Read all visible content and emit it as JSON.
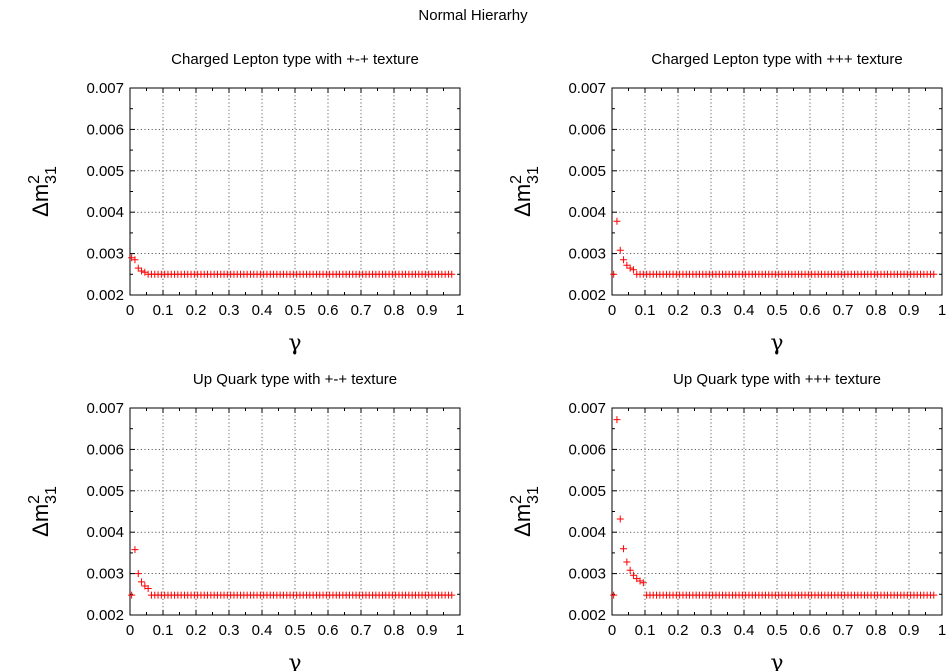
{
  "figure_title": "Normal Hierarhy",
  "chart_data": [
    {
      "type": "scatter",
      "title": "Charged Lepton type with +-+ texture",
      "xlabel": "γ",
      "ylabel": {
        "base": "Δm",
        "sup": "2",
        "sub": "31"
      },
      "xlim": [
        0,
        1
      ],
      "ylim": [
        0.002,
        0.007
      ],
      "xticks": [
        "0",
        "0.1",
        "0.2",
        "0.3",
        "0.4",
        "0.5",
        "0.6",
        "0.7",
        "0.8",
        "0.9",
        "1"
      ],
      "yticks": [
        "0.002",
        "0.003",
        "0.004",
        "0.005",
        "0.006",
        "0.007"
      ],
      "grid": true,
      "marker": "+",
      "color": "#ff0000",
      "series": [
        {
          "points": [
            [
              0.005,
              0.0029
            ],
            [
              0.015,
              0.00285
            ],
            [
              0.025,
              0.00265
            ],
            [
              0.035,
              0.00258
            ],
            [
              0.045,
              0.00255
            ]
          ],
          "tail_start": 0.055,
          "tail_step": 0.01,
          "tail_end": 0.975,
          "asymptote": 0.0025,
          "tail_k": 4e-06
        }
      ]
    },
    {
      "type": "scatter",
      "title": "Charged Lepton type with +++ texture",
      "xlabel": "γ",
      "ylabel": {
        "base": "Δm",
        "sup": "2",
        "sub": "31"
      },
      "xlim": [
        0,
        1
      ],
      "ylim": [
        0.002,
        0.007
      ],
      "xticks": [
        "0",
        "0.1",
        "0.2",
        "0.3",
        "0.4",
        "0.5",
        "0.6",
        "0.7",
        "0.8",
        "0.9",
        "1"
      ],
      "yticks": [
        "0.002",
        "0.003",
        "0.004",
        "0.005",
        "0.006",
        "0.007"
      ],
      "grid": true,
      "marker": "+",
      "color": "#ff0000",
      "series": [
        {
          "points": [
            [
              0.005,
              0.0025
            ],
            [
              0.015,
              0.00378
            ],
            [
              0.025,
              0.00308
            ],
            [
              0.035,
              0.00285
            ],
            [
              0.045,
              0.00272
            ],
            [
              0.055,
              0.00265
            ],
            [
              0.065,
              0.00261
            ]
          ],
          "tail_start": 0.075,
          "tail_step": 0.01,
          "tail_end": 0.975,
          "asymptote": 0.0025,
          "tail_k": 7.5e-06
        }
      ]
    },
    {
      "type": "scatter",
      "title": "Up Quark type with +-+ texture",
      "xlabel": "γ",
      "ylabel": {
        "base": "Δm",
        "sup": "2",
        "sub": "31"
      },
      "xlim": [
        0,
        1
      ],
      "ylim": [
        0.002,
        0.007
      ],
      "xticks": [
        "0",
        "0.1",
        "0.2",
        "0.3",
        "0.4",
        "0.5",
        "0.6",
        "0.7",
        "0.8",
        "0.9",
        "1"
      ],
      "yticks": [
        "0.002",
        "0.003",
        "0.004",
        "0.005",
        "0.006",
        "0.007"
      ],
      "grid": true,
      "marker": "+",
      "color": "#ff0000",
      "series": [
        {
          "points": [
            [
              0.005,
              0.00248
            ],
            [
              0.015,
              0.00358
            ],
            [
              0.025,
              0.003
            ],
            [
              0.035,
              0.0028
            ],
            [
              0.045,
              0.0027
            ],
            [
              0.055,
              0.00264
            ]
          ],
          "tail_start": 0.065,
          "tail_step": 0.01,
          "tail_end": 0.975,
          "asymptote": 0.00248,
          "tail_k": 7e-06
        }
      ]
    },
    {
      "type": "scatter",
      "title": "Up Quark type with +++ texture",
      "xlabel": "γ",
      "ylabel": {
        "base": "Δm",
        "sup": "2",
        "sub": "31"
      },
      "xlim": [
        0,
        1
      ],
      "ylim": [
        0.002,
        0.007
      ],
      "xticks": [
        "0",
        "0.1",
        "0.2",
        "0.3",
        "0.4",
        "0.5",
        "0.6",
        "0.7",
        "0.8",
        "0.9",
        "1"
      ],
      "yticks": [
        "0.002",
        "0.003",
        "0.004",
        "0.005",
        "0.006",
        "0.007"
      ],
      "grid": true,
      "marker": "+",
      "color": "#ff0000",
      "series": [
        {
          "points": [
            [
              0.005,
              0.00248
            ],
            [
              0.015,
              0.00672
            ],
            [
              0.025,
              0.00432
            ],
            [
              0.035,
              0.0036
            ],
            [
              0.045,
              0.00328
            ],
            [
              0.055,
              0.00308
            ],
            [
              0.065,
              0.00296
            ],
            [
              0.075,
              0.00288
            ],
            [
              0.085,
              0.00282
            ],
            [
              0.095,
              0.00278
            ]
          ],
          "tail_start": 0.105,
          "tail_step": 0.01,
          "tail_end": 0.975,
          "asymptote": 0.00248,
          "tail_k": 2.85e-05
        }
      ]
    }
  ]
}
